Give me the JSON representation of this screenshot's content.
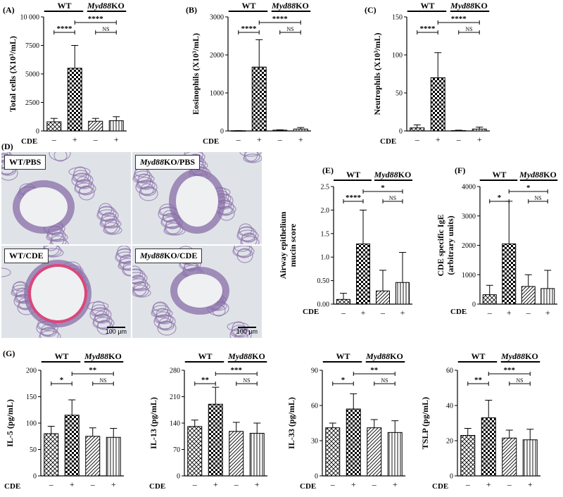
{
  "panel_labels": {
    "A": "(A)",
    "B": "(B)",
    "C": "(C)",
    "D": "(D)",
    "E": "(E)",
    "F": "(F)",
    "G": "(G)"
  },
  "group_labels": {
    "wt": "WT",
    "ko_italic": "Myd88",
    "ko_suffix": "KO"
  },
  "cde_label": "CDE",
  "cde_signs": [
    "–",
    "+",
    "–",
    "+"
  ],
  "histology": {
    "panels": [
      {
        "name": "WT",
        "slash": "/PBS",
        "italic": false
      },
      {
        "name": "Myd88",
        "slash": "KO/PBS",
        "italic": true
      },
      {
        "name": "WT",
        "slash": "/CDE",
        "italic": false
      },
      {
        "name": "Myd88",
        "slash": "KO/CDE",
        "italic": true
      }
    ],
    "scale_label": "100 μm",
    "colors": {
      "tissue": "#8a6fa8",
      "lumen": "#eef0f2",
      "mucin": "#d9487a",
      "background": "#dfe3e8"
    }
  },
  "colors": {
    "bar_stroke": "#000000",
    "bar_fill": "#ffffff"
  },
  "chart_data": [
    {
      "id": "A",
      "type": "bar",
      "ylabel": "Total cells (X10³/mL)",
      "yticks": [
        0,
        2500,
        5000,
        7500,
        10000
      ],
      "ytick_labels": [
        "0",
        "2500",
        "5000",
        "7500",
        "10 000"
      ],
      "ylim": [
        0,
        10000
      ],
      "categories": [
        "WT –",
        "WT +",
        "Myd88KO –",
        "Myd88KO +"
      ],
      "values": [
        800,
        5500,
        850,
        900
      ],
      "errors": [
        300,
        2000,
        250,
        350
      ],
      "sig": [
        {
          "from": 0,
          "to": 1,
          "label": "****"
        },
        {
          "from": 1,
          "to": 3,
          "label": "****"
        },
        {
          "from": 2,
          "to": 3,
          "label": "NS"
        }
      ]
    },
    {
      "id": "B",
      "type": "bar",
      "ylabel": "Eosinophils (X10³/mL)",
      "yticks": [
        0,
        1000,
        2000,
        3000
      ],
      "ytick_labels": [
        "0",
        "1000",
        "2000",
        "3000"
      ],
      "ylim": [
        0,
        3000
      ],
      "categories": [
        "WT –",
        "WT +",
        "Myd88KO –",
        "Myd88KO +"
      ],
      "values": [
        5,
        1680,
        20,
        50
      ],
      "errors": [
        5,
        720,
        10,
        40
      ],
      "sig": [
        {
          "from": 0,
          "to": 1,
          "label": "****"
        },
        {
          "from": 1,
          "to": 3,
          "label": "****"
        },
        {
          "from": 2,
          "to": 3,
          "label": "NS"
        }
      ]
    },
    {
      "id": "C",
      "type": "bar",
      "ylabel": "Neutrophils (X10³/mL)",
      "yticks": [
        0,
        50,
        100,
        150
      ],
      "ytick_labels": [
        "0",
        "50",
        "100",
        "150"
      ],
      "ylim": [
        0,
        150
      ],
      "categories": [
        "WT –",
        "WT +",
        "Myd88KO –",
        "Myd88KO +"
      ],
      "values": [
        4,
        70,
        0.5,
        2.5
      ],
      "errors": [
        4,
        33,
        0.5,
        2.5
      ],
      "sig": [
        {
          "from": 0,
          "to": 1,
          "label": "****"
        },
        {
          "from": 1,
          "to": 3,
          "label": "****"
        },
        {
          "from": 2,
          "to": 3,
          "label": "NS"
        }
      ]
    },
    {
      "id": "E",
      "type": "bar",
      "ylabel": "Airway epithelium mucin score",
      "ylabel_lines": [
        "Airway epithelium",
        "mucin score"
      ],
      "yticks": [
        0,
        0.5,
        1.0,
        1.5,
        2.0,
        2.5
      ],
      "ytick_labels": [
        "0.00",
        "0.50",
        "1.0",
        "1.5",
        "2.0",
        "2.5"
      ],
      "ylim": [
        0,
        2.5
      ],
      "categories": [
        "WT –",
        "WT +",
        "Myd88KO –",
        "Myd88KO +"
      ],
      "values": [
        0.1,
        1.28,
        0.28,
        0.46
      ],
      "errors": [
        0.13,
        0.72,
        0.44,
        0.64
      ],
      "sig": [
        {
          "from": 0,
          "to": 1,
          "label": "****"
        },
        {
          "from": 1,
          "to": 3,
          "label": "*"
        },
        {
          "from": 2,
          "to": 3,
          "label": "NS"
        }
      ]
    },
    {
      "id": "F",
      "type": "bar",
      "ylabel": "CDE specific IgE (arbitrary units)",
      "ylabel_lines": [
        "CDE specific IgE",
        "(arbitrary units)"
      ],
      "yticks": [
        0,
        1000,
        2000,
        3000,
        4000
      ],
      "ytick_labels": [
        "0",
        "1000",
        "2000",
        "3000",
        "4000"
      ],
      "ylim": [
        0,
        4000
      ],
      "categories": [
        "WT –",
        "WT +",
        "Myd88KO –",
        "Myd88KO +"
      ],
      "values": [
        320,
        2050,
        600,
        530
      ],
      "errors": [
        320,
        1450,
        400,
        620
      ],
      "sig": [
        {
          "from": 0,
          "to": 1,
          "label": "*"
        },
        {
          "from": 1,
          "to": 3,
          "label": "*"
        },
        {
          "from": 2,
          "to": 3,
          "label": "NS"
        }
      ]
    },
    {
      "id": "G1",
      "type": "bar",
      "ylabel": "IL-5 (pg/mL)",
      "yticks": [
        0,
        50,
        100,
        150,
        200
      ],
      "ytick_labels": [
        "0",
        "50",
        "100",
        "150",
        "200"
      ],
      "ylim": [
        0,
        200
      ],
      "categories": [
        "WT –",
        "WT +",
        "Myd88KO –",
        "Myd88KO +"
      ],
      "values": [
        80,
        115,
        75,
        73
      ],
      "errors": [
        14,
        29,
        16,
        17
      ],
      "sig": [
        {
          "from": 0,
          "to": 1,
          "label": "*"
        },
        {
          "from": 1,
          "to": 3,
          "label": "**"
        },
        {
          "from": 2,
          "to": 3,
          "label": "NS"
        }
      ]
    },
    {
      "id": "G2",
      "type": "bar",
      "ylabel": "IL-13 (pg/mL)",
      "yticks": [
        0,
        70,
        140,
        210,
        280
      ],
      "ytick_labels": [
        "0",
        "70",
        "140",
        "210",
        "280"
      ],
      "ylim": [
        0,
        280
      ],
      "categories": [
        "WT –",
        "WT +",
        "Myd88KO –",
        "Myd88KO +"
      ],
      "values": [
        131,
        190,
        118,
        113
      ],
      "errors": [
        17,
        45,
        24,
        27
      ],
      "sig": [
        {
          "from": 0,
          "to": 1,
          "label": "**"
        },
        {
          "from": 1,
          "to": 3,
          "label": "***"
        },
        {
          "from": 2,
          "to": 3,
          "label": "NS"
        }
      ]
    },
    {
      "id": "G3",
      "type": "bar",
      "ylabel": "IL-33 (pg/mL)",
      "yticks": [
        0,
        30,
        60,
        90
      ],
      "ytick_labels": [
        "0",
        "30",
        "60",
        "90"
      ],
      "ylim": [
        0,
        90
      ],
      "categories": [
        "WT –",
        "WT +",
        "Myd88KO –",
        "Myd88KO +"
      ],
      "values": [
        41,
        57,
        41,
        37
      ],
      "errors": [
        4,
        13,
        7,
        10
      ],
      "sig": [
        {
          "from": 0,
          "to": 1,
          "label": "*"
        },
        {
          "from": 1,
          "to": 3,
          "label": "**"
        },
        {
          "from": 2,
          "to": 3,
          "label": "NS"
        }
      ]
    },
    {
      "id": "G4",
      "type": "bar",
      "ylabel": "TSLP (pg/mL)",
      "yticks": [
        0,
        20,
        40,
        60
      ],
      "ytick_labels": [
        "0",
        "20",
        "40",
        "60"
      ],
      "ylim": [
        0,
        60
      ],
      "categories": [
        "WT –",
        "WT +",
        "Myd88KO –",
        "Myd88KO +"
      ],
      "values": [
        23,
        33,
        21.5,
        20.5
      ],
      "errors": [
        4,
        10,
        4.5,
        6
      ],
      "sig": [
        {
          "from": 0,
          "to": 1,
          "label": "**"
        },
        {
          "from": 1,
          "to": 3,
          "label": "***"
        },
        {
          "from": 2,
          "to": 3,
          "label": "NS"
        }
      ]
    }
  ]
}
